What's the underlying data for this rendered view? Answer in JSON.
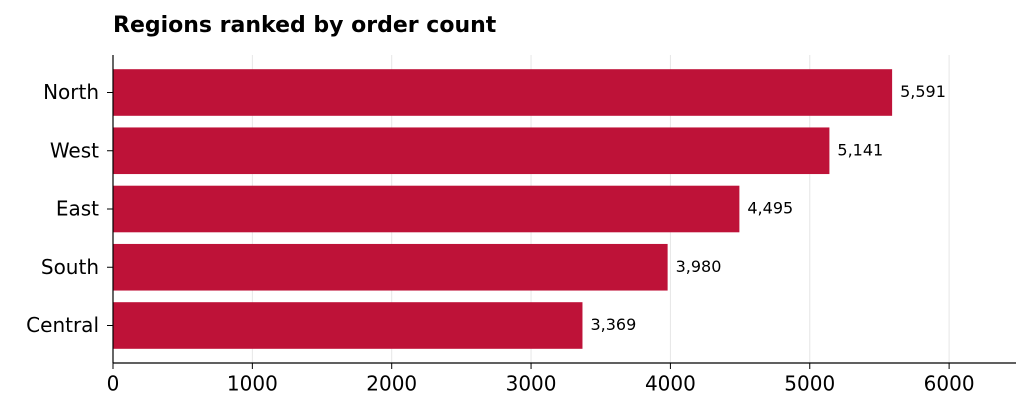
{
  "chart_data": {
    "type": "barh",
    "title": "Regions ranked by order count",
    "categories": [
      "North",
      "West",
      "East",
      "South",
      "Central"
    ],
    "values": [
      5591,
      5141,
      4495,
      3980,
      3369
    ],
    "value_labels": [
      "5,591",
      "5,141",
      "4,495",
      "3,980",
      "3,369"
    ],
    "color": "#be1238",
    "xlim": [
      0,
      6480
    ],
    "xticks": [
      0,
      1000,
      2000,
      3000,
      4000,
      5000,
      6000
    ],
    "grid": true
  }
}
